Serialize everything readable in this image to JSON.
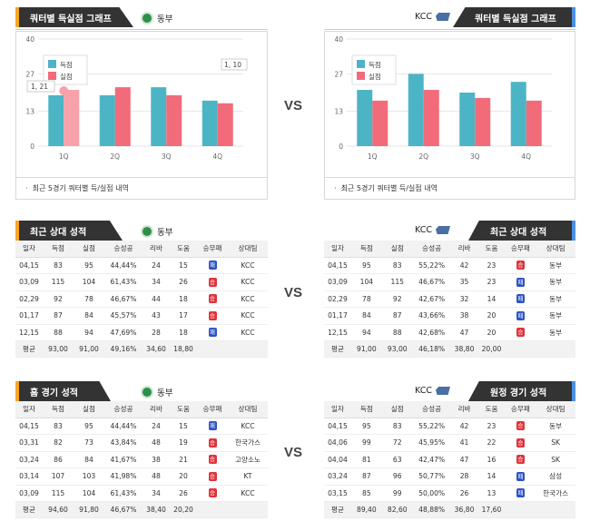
{
  "sections": {
    "quarter_title": "쿼터별 득실점 그래프",
    "recent_title": "최근 상대 성적",
    "home_title": "홈 경기 성적",
    "away_title": "원정 경기 성적",
    "vs": "VS"
  },
  "teams": {
    "left": "동부",
    "right": "KCC"
  },
  "chart_caption": "최근 5경기 쿼터별 득/실점 내역",
  "chart_legend": {
    "score": "득점",
    "allow": "실점"
  },
  "colors": {
    "score": "#4bb5c6",
    "allow": "#f26b7a",
    "header": "#333333",
    "accent_left": "#f5a623",
    "accent_right": "#4a90e2"
  },
  "chart_data": [
    {
      "type": "bar",
      "categories": [
        "1Q",
        "2Q",
        "3Q",
        "4Q"
      ],
      "series": [
        {
          "name": "득점",
          "values": [
            19,
            19,
            22,
            17
          ]
        },
        {
          "name": "실점",
          "values": [
            21,
            22,
            19,
            16
          ]
        }
      ],
      "ylim": [
        0,
        40
      ],
      "yticks": [
        0,
        13,
        27,
        40
      ],
      "annotations": [
        "1, 21",
        "1, 10"
      ]
    },
    {
      "type": "bar",
      "categories": [
        "1Q",
        "2Q",
        "3Q",
        "4Q"
      ],
      "series": [
        {
          "name": "득점",
          "values": [
            21,
            27,
            20,
            24
          ]
        },
        {
          "name": "실점",
          "values": [
            17,
            21,
            18,
            17
          ]
        }
      ],
      "ylim": [
        0,
        40
      ],
      "yticks": [
        0,
        13,
        27,
        40
      ]
    }
  ],
  "table_headers": {
    "left": [
      "일자",
      "득점",
      "실점",
      "승성공",
      "리바",
      "도움",
      "승무패",
      "상대팀"
    ],
    "right": [
      "일자",
      "득점",
      "실점",
      "승성공",
      "리바",
      "도움",
      "승무패",
      "상대팀"
    ]
  },
  "recent_left": {
    "rows": [
      [
        "04,15",
        "83",
        "95",
        "44,44%",
        "24",
        "15",
        "패",
        "KCC"
      ],
      [
        "03,09",
        "115",
        "104",
        "61,43%",
        "34",
        "26",
        "승",
        "KCC"
      ],
      [
        "02,29",
        "92",
        "78",
        "46,67%",
        "44",
        "18",
        "승",
        "KCC"
      ],
      [
        "01,17",
        "87",
        "84",
        "45,57%",
        "43",
        "17",
        "승",
        "KCC"
      ],
      [
        "12,15",
        "88",
        "94",
        "47,69%",
        "28",
        "18",
        "패",
        "KCC"
      ]
    ],
    "avg": [
      "평균",
      "93,00",
      "91,00",
      "49,16%",
      "34,60",
      "18,80",
      "",
      ""
    ]
  },
  "recent_right": {
    "rows": [
      [
        "04,15",
        "95",
        "83",
        "55,22%",
        "42",
        "23",
        "승",
        "동부"
      ],
      [
        "03,09",
        "104",
        "115",
        "46,67%",
        "35",
        "23",
        "패",
        "동부"
      ],
      [
        "02,29",
        "78",
        "92",
        "42,67%",
        "32",
        "14",
        "패",
        "동부"
      ],
      [
        "01,17",
        "84",
        "87",
        "43,66%",
        "38",
        "20",
        "패",
        "동부"
      ],
      [
        "12,15",
        "94",
        "88",
        "42,68%",
        "47",
        "20",
        "승",
        "동부"
      ]
    ],
    "avg": [
      "평균",
      "91,00",
      "93,00",
      "46,18%",
      "38,80",
      "20,00",
      "",
      ""
    ]
  },
  "home_left": {
    "rows": [
      [
        "04,15",
        "83",
        "95",
        "44,44%",
        "24",
        "15",
        "패",
        "KCC"
      ],
      [
        "03,31",
        "82",
        "73",
        "43,84%",
        "48",
        "19",
        "승",
        "한국가스"
      ],
      [
        "03,24",
        "86",
        "84",
        "41,67%",
        "38",
        "21",
        "승",
        "고양소노"
      ],
      [
        "03,14",
        "107",
        "103",
        "41,98%",
        "48",
        "20",
        "승",
        "KT"
      ],
      [
        "03,09",
        "115",
        "104",
        "61,43%",
        "34",
        "26",
        "승",
        "KCC"
      ]
    ],
    "avg": [
      "평균",
      "94,60",
      "91,80",
      "46,67%",
      "38,40",
      "20,20",
      "",
      ""
    ]
  },
  "away_right": {
    "rows": [
      [
        "04,15",
        "95",
        "83",
        "55,22%",
        "42",
        "23",
        "승",
        "동부"
      ],
      [
        "04,06",
        "99",
        "72",
        "45,95%",
        "41",
        "22",
        "승",
        "SK"
      ],
      [
        "04,04",
        "81",
        "63",
        "42,47%",
        "47",
        "16",
        "승",
        "SK"
      ],
      [
        "03,24",
        "87",
        "96",
        "50,77%",
        "28",
        "14",
        "패",
        "삼성"
      ],
      [
        "03,15",
        "85",
        "99",
        "50,00%",
        "26",
        "13",
        "패",
        "한국가스"
      ]
    ],
    "avg": [
      "평균",
      "89,40",
      "82,60",
      "48,88%",
      "36,80",
      "17,60",
      "",
      ""
    ]
  }
}
